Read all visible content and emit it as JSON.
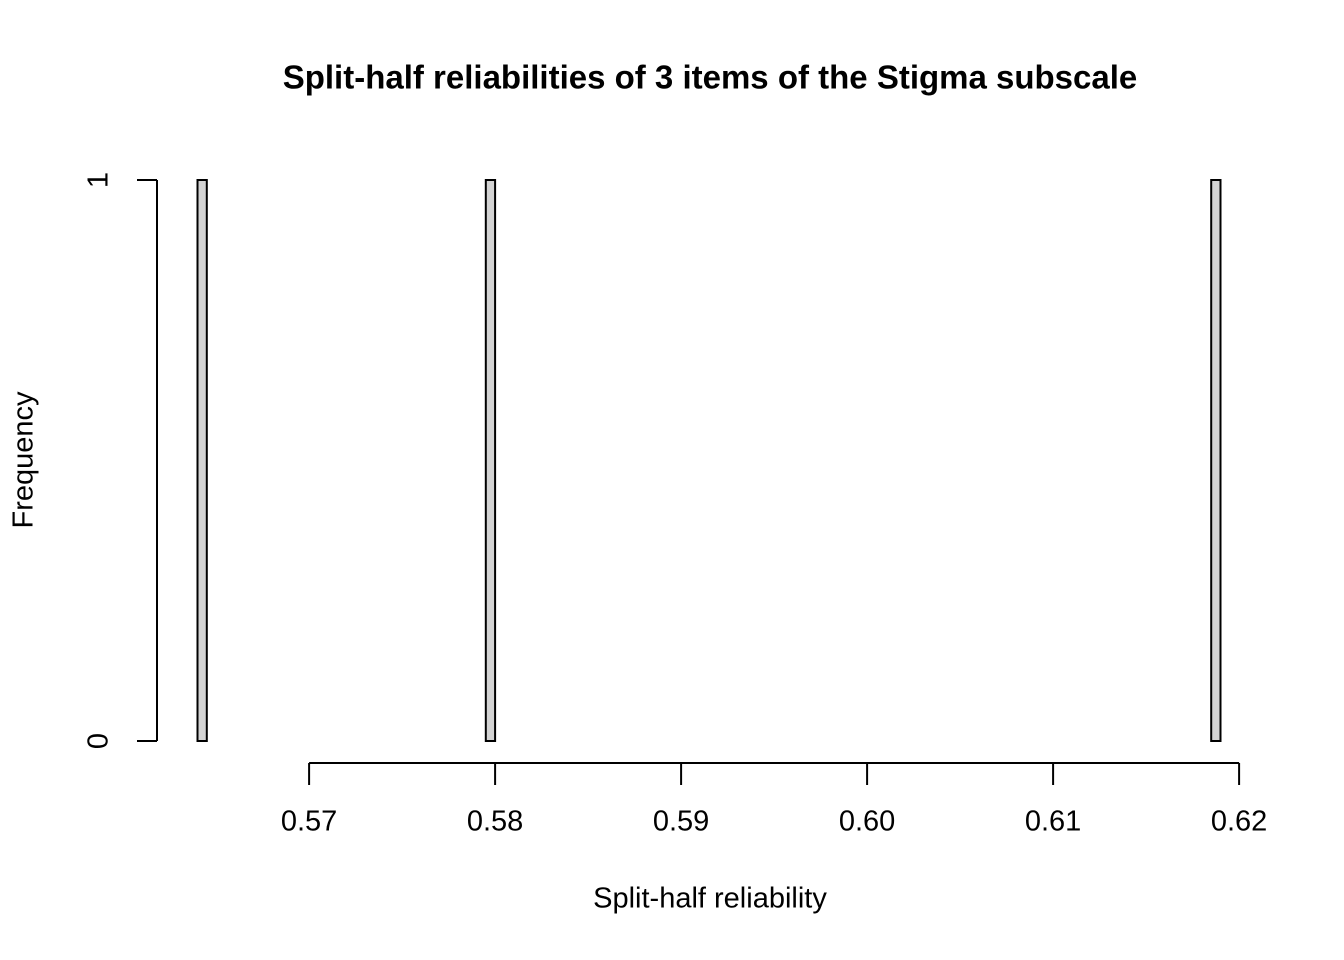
{
  "chart_data": {
    "type": "histogram",
    "title": "Split-half reliabilities of 3 items of the Stigma subscale",
    "x_label": "Split-half reliability",
    "y_label": "Frequency",
    "color": "#d3d3d3",
    "bins": [
      0.564,
      0.5645,
      0.565,
      0.5655,
      0.566,
      0.5665,
      0.567,
      0.5675,
      0.568,
      0.5685,
      0.569,
      0.5695,
      0.57,
      0.5705,
      0.571,
      0.5715,
      0.572,
      0.5725,
      0.573,
      0.5735,
      0.574,
      0.5745,
      0.575,
      0.5755,
      0.576,
      0.5765,
      0.577,
      0.5775,
      0.578,
      0.5785,
      0.579,
      0.5795,
      0.58,
      0.5805,
      0.581,
      0.5815,
      0.582,
      0.5825,
      0.583,
      0.5835,
      0.584,
      0.5845,
      0.585,
      0.5855,
      0.586,
      0.5865,
      0.587,
      0.5875,
      0.588,
      0.5885,
      0.589,
      0.5895,
      0.59,
      0.5905,
      0.591,
      0.5915,
      0.592,
      0.5925,
      0.593,
      0.5935,
      0.594,
      0.5945,
      0.595,
      0.5955,
      0.596,
      0.5965,
      0.597,
      0.5975,
      0.598,
      0.5985,
      0.599,
      0.5995,
      0.6,
      0.6005,
      0.601,
      0.6015,
      0.602,
      0.6025,
      0.603,
      0.6035,
      0.604,
      0.6045,
      0.605,
      0.6055,
      0.606,
      0.6065,
      0.607,
      0.6075,
      0.608,
      0.6085,
      0.609,
      0.6095,
      0.61,
      0.6105,
      0.611,
      0.6115,
      0.612,
      0.6125,
      0.613,
      0.6135,
      0.614,
      0.6145,
      0.615,
      0.6155,
      0.616,
      0.6165,
      0.617,
      0.6175,
      0.618,
      0.6185,
      0.619
    ],
    "counts": [
      1,
      0,
      0,
      0,
      0,
      0,
      0,
      0,
      0,
      0,
      0,
      0,
      0,
      0,
      0,
      0,
      0,
      0,
      0,
      0,
      0,
      0,
      0,
      0,
      0,
      0,
      0,
      0,
      0,
      0,
      0,
      1,
      0,
      0,
      0,
      0,
      0,
      0,
      0,
      0,
      0,
      0,
      0,
      0,
      0,
      0,
      0,
      0,
      0,
      0,
      0,
      0,
      0,
      0,
      0,
      0,
      0,
      0,
      0,
      0,
      0,
      0,
      0,
      0,
      0,
      0,
      0,
      0,
      0,
      0,
      0,
      0,
      0,
      0,
      0,
      0,
      0,
      0,
      0,
      0,
      0,
      0,
      0,
      0,
      0,
      0,
      0,
      0,
      0,
      0,
      0,
      0,
      0,
      0,
      0,
      0,
      0,
      0,
      0,
      0,
      0,
      0,
      0,
      0,
      0,
      0,
      0,
      0,
      0,
      1
    ],
    "xlim": [
      0.564,
      0.619
    ],
    "xticks": [
      0.57,
      0.58,
      0.59,
      {
        "value": 0.6,
        "label": "0.60"
      },
      0.61,
      0.62
    ],
    "ylim": [
      0,
      1
    ],
    "yticks": [
      0,
      1
    ]
  }
}
